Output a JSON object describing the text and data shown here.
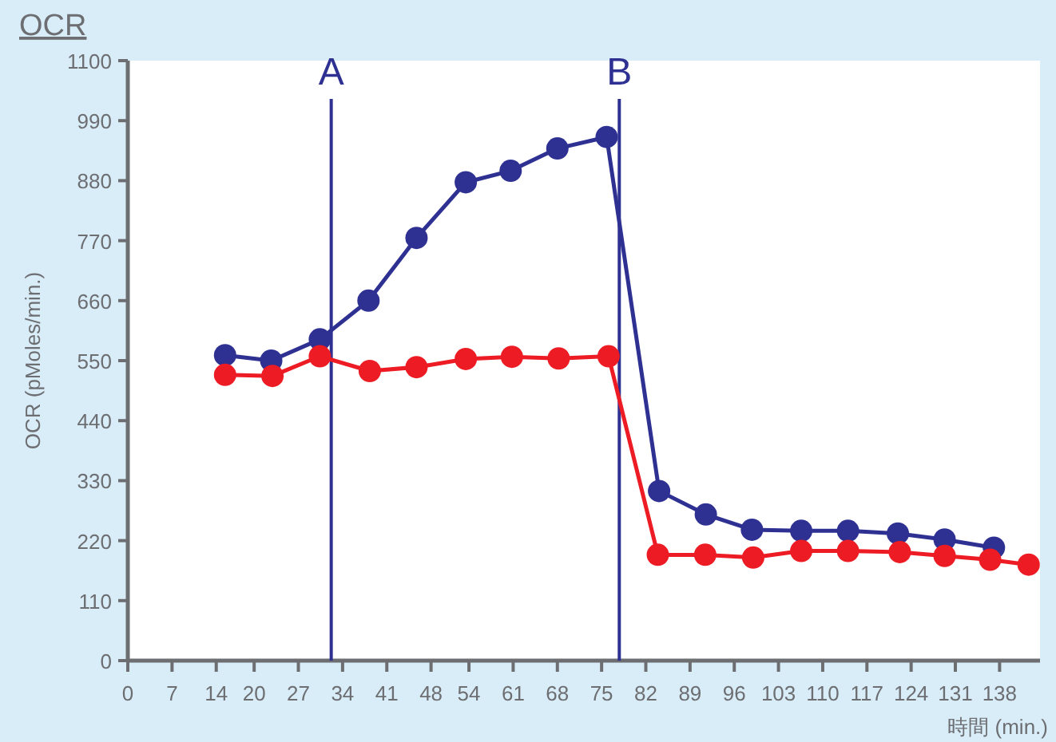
{
  "chart_data": {
    "type": "line",
    "title": "OCR",
    "ylabel": "OCR (pMoles/min.)",
    "xlabel": "時間 (min.)",
    "xlim": [
      0,
      144.4
    ],
    "xticks": [
      0,
      7,
      14,
      20,
      27,
      34,
      41,
      48,
      54,
      61,
      68,
      75,
      82,
      89,
      96,
      103,
      110,
      117,
      124,
      131,
      138
    ],
    "ylim": [
      0,
      1100
    ],
    "yticks": [
      0,
      110,
      220,
      330,
      440,
      550,
      660,
      770,
      880,
      990,
      1100
    ],
    "grid": false,
    "marker": "circle",
    "line_style": "solid",
    "series": [
      {
        "color": "#2e3192",
        "x": [
          15.4,
          22.7,
          30.4,
          38.1,
          45.7,
          53.5,
          60.6,
          68.0,
          75.8,
          84.1,
          91.5,
          98.8,
          106.6,
          114.0,
          121.9,
          129.3,
          137.1
        ],
        "values": [
          560,
          550,
          589,
          660,
          775,
          877,
          898,
          939,
          960,
          311,
          268,
          240,
          238,
          238,
          233,
          222,
          207
        ]
      },
      {
        "color": "#ed1c24",
        "x": [
          15.4,
          22.9,
          30.4,
          38.3,
          45.7,
          53.5,
          60.8,
          68.2,
          76.1,
          83.9,
          91.4,
          99.0,
          106.6,
          114.0,
          122.2,
          129.3,
          136.5,
          142.6
        ],
        "values": [
          524,
          522,
          558,
          531,
          538,
          553,
          557,
          554,
          558,
          194,
          194,
          189,
          201,
          201,
          199,
          192,
          185,
          176
        ]
      }
    ],
    "ref_lines": [
      {
        "axis": "x",
        "value": 32.2,
        "label": "A",
        "color": "#2e3192"
      },
      {
        "axis": "x",
        "value": 77.8,
        "label": "B",
        "color": "#2e3192"
      }
    ]
  }
}
